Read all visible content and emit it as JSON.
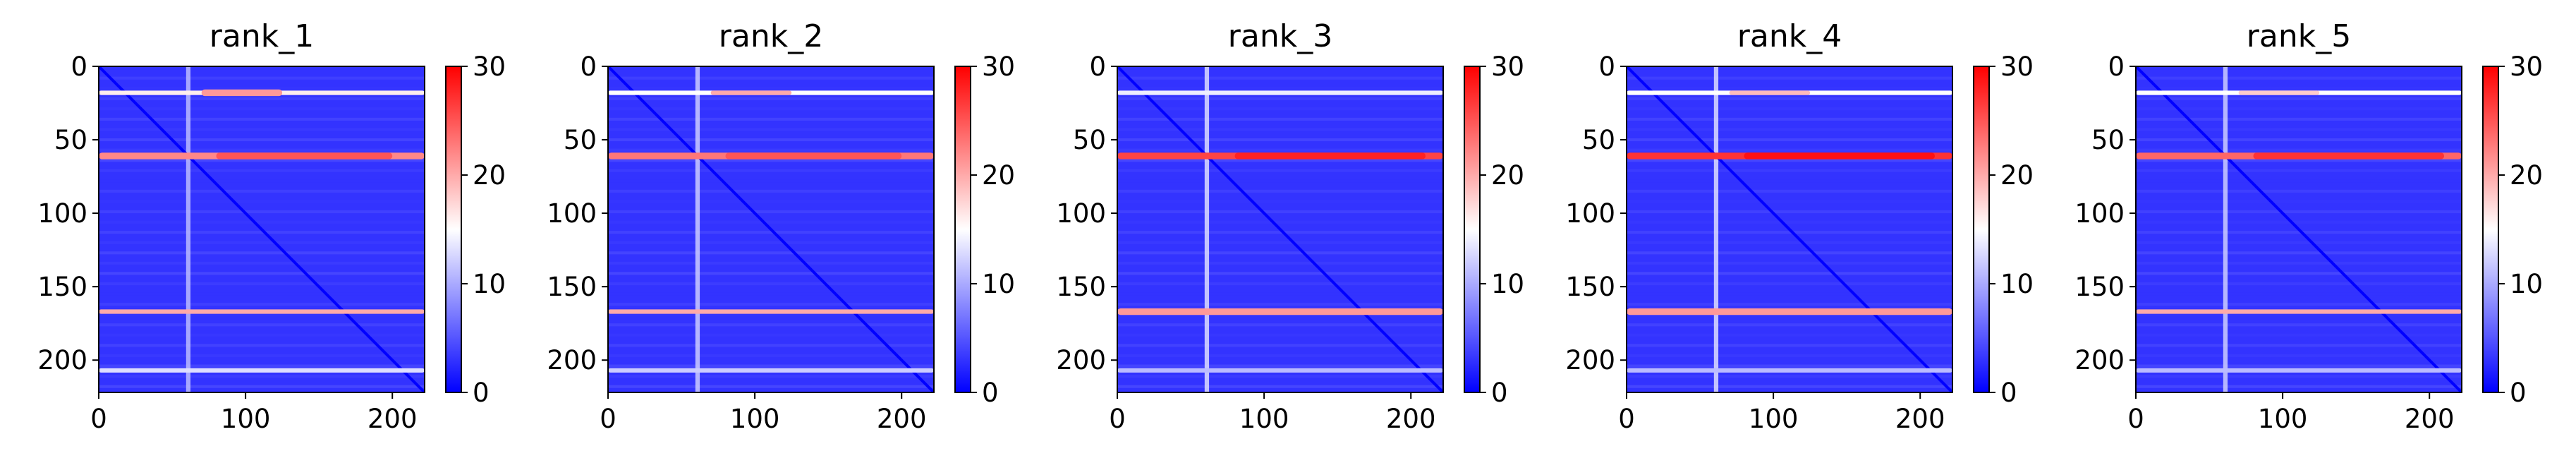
{
  "chart_data": [
    {
      "type": "heatmap",
      "title": "rank_1",
      "xlim": [
        0,
        222
      ],
      "ylim": [
        222,
        0
      ],
      "xticks": [
        0,
        100,
        200
      ],
      "yticks": [
        0,
        50,
        100,
        150,
        200
      ],
      "colorbar": {
        "range": [
          0,
          30
        ],
        "ticks": [
          0,
          10,
          20,
          30
        ]
      },
      "colormap": {
        "low": "#0000ff",
        "mid": "#ffffff",
        "high": "#ff0000"
      },
      "base_value": 3,
      "bands": [
        {
          "y": 18,
          "value": 16,
          "x_from": 0,
          "x_to": 222
        },
        {
          "y": 18,
          "value": 21,
          "x_from": 70,
          "x_to": 125
        },
        {
          "y": 61,
          "value": 22,
          "x_from": 0,
          "x_to": 222
        },
        {
          "y": 61,
          "value": 25,
          "x_from": 80,
          "x_to": 200
        },
        {
          "y": 167,
          "value": 20,
          "x_from": 0,
          "x_to": 222
        },
        {
          "y": 207,
          "value": 13,
          "x_from": 0,
          "x_to": 222
        }
      ],
      "vertical_bands": [
        {
          "x": 61,
          "value": 11
        }
      ]
    },
    {
      "type": "heatmap",
      "title": "rank_2",
      "xlim": [
        0,
        222
      ],
      "ylim": [
        222,
        0
      ],
      "xticks": [
        0,
        100,
        200
      ],
      "yticks": [
        0,
        50,
        100,
        150,
        200
      ],
      "colorbar": {
        "range": [
          0,
          30
        ],
        "ticks": [
          0,
          10,
          20,
          30
        ]
      },
      "colormap": {
        "low": "#0000ff",
        "mid": "#ffffff",
        "high": "#ff0000"
      },
      "base_value": 3,
      "bands": [
        {
          "y": 18,
          "value": 15,
          "x_from": 0,
          "x_to": 222
        },
        {
          "y": 18,
          "value": 20,
          "x_from": 70,
          "x_to": 125
        },
        {
          "y": 61,
          "value": 23,
          "x_from": 0,
          "x_to": 222
        },
        {
          "y": 61,
          "value": 25,
          "x_from": 80,
          "x_to": 200
        },
        {
          "y": 167,
          "value": 20,
          "x_from": 0,
          "x_to": 222
        },
        {
          "y": 207,
          "value": 12,
          "x_from": 0,
          "x_to": 222
        }
      ],
      "vertical_bands": [
        {
          "x": 61,
          "value": 12
        }
      ]
    },
    {
      "type": "heatmap",
      "title": "rank_3",
      "xlim": [
        0,
        222
      ],
      "ylim": [
        222,
        0
      ],
      "xticks": [
        0,
        100,
        200
      ],
      "yticks": [
        0,
        50,
        100,
        150,
        200
      ],
      "colorbar": {
        "range": [
          0,
          30
        ],
        "ticks": [
          0,
          10,
          20,
          30
        ]
      },
      "colormap": {
        "low": "#0000ff",
        "mid": "#ffffff",
        "high": "#ff0000"
      },
      "base_value": 3,
      "bands": [
        {
          "y": 18,
          "value": 14,
          "x_from": 0,
          "x_to": 222
        },
        {
          "y": 61,
          "value": 26,
          "x_from": 0,
          "x_to": 222
        },
        {
          "y": 61,
          "value": 28,
          "x_from": 80,
          "x_to": 210
        },
        {
          "y": 167,
          "value": 21,
          "x_from": 0,
          "x_to": 222
        },
        {
          "y": 207,
          "value": 11,
          "x_from": 0,
          "x_to": 222
        }
      ],
      "vertical_bands": [
        {
          "x": 61,
          "value": 13
        }
      ]
    },
    {
      "type": "heatmap",
      "title": "rank_4",
      "xlim": [
        0,
        222
      ],
      "ylim": [
        222,
        0
      ],
      "xticks": [
        0,
        100,
        200
      ],
      "yticks": [
        0,
        50,
        100,
        150,
        200
      ],
      "colorbar": {
        "range": [
          0,
          30
        ],
        "ticks": [
          0,
          10,
          20,
          30
        ]
      },
      "colormap": {
        "low": "#0000ff",
        "mid": "#ffffff",
        "high": "#ff0000"
      },
      "base_value": 3,
      "bands": [
        {
          "y": 18,
          "value": 15,
          "x_from": 0,
          "x_to": 222
        },
        {
          "y": 18,
          "value": 19,
          "x_from": 70,
          "x_to": 125
        },
        {
          "y": 61,
          "value": 27,
          "x_from": 0,
          "x_to": 222
        },
        {
          "y": 61,
          "value": 29,
          "x_from": 80,
          "x_to": 210
        },
        {
          "y": 167,
          "value": 21,
          "x_from": 0,
          "x_to": 222
        },
        {
          "y": 207,
          "value": 11,
          "x_from": 0,
          "x_to": 222
        }
      ],
      "vertical_bands": [
        {
          "x": 61,
          "value": 13
        }
      ]
    },
    {
      "type": "heatmap",
      "title": "rank_5",
      "xlim": [
        0,
        222
      ],
      "ylim": [
        222,
        0
      ],
      "xticks": [
        0,
        100,
        200
      ],
      "yticks": [
        0,
        50,
        100,
        150,
        200
      ],
      "colorbar": {
        "range": [
          0,
          30
        ],
        "ticks": [
          0,
          10,
          20,
          30
        ]
      },
      "colormap": {
        "low": "#0000ff",
        "mid": "#ffffff",
        "high": "#ff0000"
      },
      "base_value": 3,
      "bands": [
        {
          "y": 18,
          "value": 15,
          "x_from": 0,
          "x_to": 222
        },
        {
          "y": 18,
          "value": 18,
          "x_from": 70,
          "x_to": 125
        },
        {
          "y": 61,
          "value": 24,
          "x_from": 0,
          "x_to": 222
        },
        {
          "y": 61,
          "value": 27,
          "x_from": 80,
          "x_to": 210
        },
        {
          "y": 167,
          "value": 20,
          "x_from": 0,
          "x_to": 222
        },
        {
          "y": 207,
          "value": 11,
          "x_from": 0,
          "x_to": 222
        }
      ],
      "vertical_bands": [
        {
          "x": 61,
          "value": 12
        }
      ]
    }
  ]
}
